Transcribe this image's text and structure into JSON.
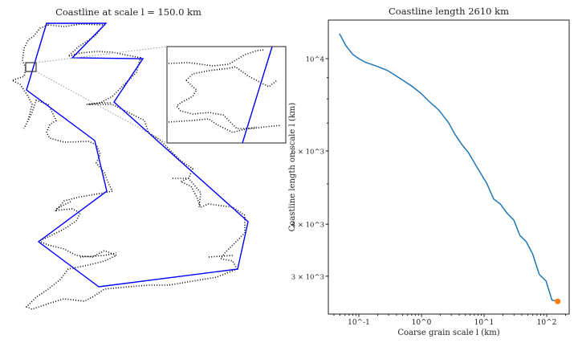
{
  "chart_data": [
    {
      "type": "map",
      "title": "Coastline at scale l = 150.0 km",
      "scale_km": 150.0,
      "colors": {
        "coastline": "#000000",
        "coarse_polygon": "#0000ff",
        "zoom_connector": "#999999"
      },
      "has_inset_zoom": true
    },
    {
      "type": "line",
      "title": "Coastline length 2610 km",
      "xlabel": "Coarse grain scale l (km)",
      "ylabel": "Coastline length on scale l (km)",
      "xscale": "log",
      "yscale": "log",
      "xlim": [
        0.035,
        220
      ],
      "ylim": [
        2450,
        12300
      ],
      "xticks": [
        {
          "v": 0.1,
          "label": "10^-1"
        },
        {
          "v": 1,
          "label": "10^0"
        },
        {
          "v": 10,
          "label": "10^1"
        },
        {
          "v": 100,
          "label": "10^2"
        }
      ],
      "yticks": [
        {
          "v": 10000,
          "label": "10^4"
        },
        {
          "v": 6000,
          "label": "6 × 10^3"
        },
        {
          "v": 4000,
          "label": "4 × 10^3"
        },
        {
          "v": 3000,
          "label": "3 × 10^3"
        }
      ],
      "grid": false,
      "series": [
        {
          "color": "#1f77b4",
          "x": [
            0.049,
            0.062,
            0.08,
            0.1,
            0.127,
            0.197,
            0.28,
            0.39,
            0.53,
            0.71,
            1.0,
            1.34,
            1.9,
            2.73,
            3.4,
            4.4,
            5.6,
            7.5,
            11.1,
            14.2,
            18.2,
            23.3,
            29.9,
            37.3,
            47.3,
            59.8,
            75.9,
            97.7,
            121,
            150
          ],
          "y": [
            11490,
            10750,
            10240,
            10000,
            9800,
            9580,
            9380,
            9100,
            8830,
            8580,
            8230,
            7880,
            7520,
            7000,
            6590,
            6220,
            5950,
            5520,
            5010,
            4600,
            4470,
            4250,
            4090,
            3760,
            3630,
            3390,
            3030,
            2920,
            2630,
            2610
          ]
        }
      ],
      "highlight_point": {
        "x": 150,
        "y": 2610,
        "color": "#ff7f0e"
      }
    }
  ]
}
